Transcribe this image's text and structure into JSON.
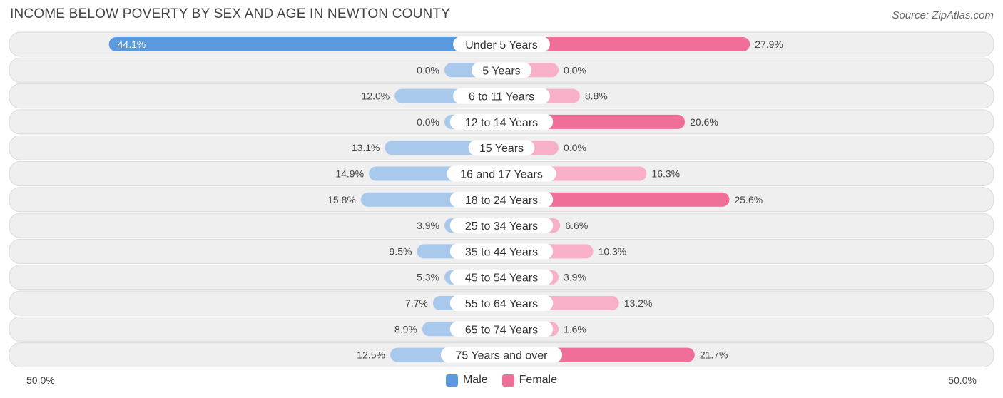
{
  "header": {
    "title": "Income Below Poverty by Sex and Age in Newton County",
    "source": "Source: ZipAtlas.com"
  },
  "colors": {
    "male_strong": "#5b9bdd",
    "male_light": "#a8c8ec",
    "female_strong": "#f06f98",
    "female_light": "#f7b0c7",
    "row_bg": "#efefef",
    "row_border": "#dadada"
  },
  "chart_data": {
    "type": "bar",
    "orientation": "diverging-horizontal",
    "title": "Income Below Poverty by Sex and Age in Newton County",
    "categories": [
      "Under 5 Years",
      "5 Years",
      "6 to 11 Years",
      "12 to 14 Years",
      "15 Years",
      "16 and 17 Years",
      "18 to 24 Years",
      "25 to 34 Years",
      "35 to 44 Years",
      "45 to 54 Years",
      "55 to 64 Years",
      "65 to 74 Years",
      "75 Years and over"
    ],
    "series": [
      {
        "name": "Male",
        "values": [
          44.1,
          0.0,
          12.0,
          0.0,
          13.1,
          14.9,
          15.8,
          3.9,
          9.5,
          5.3,
          7.7,
          8.9,
          12.5
        ],
        "labels": [
          "44.1%",
          "0.0%",
          "12.0%",
          "0.0%",
          "13.1%",
          "14.9%",
          "15.8%",
          "3.9%",
          "9.5%",
          "5.3%",
          "7.7%",
          "8.9%",
          "12.5%"
        ]
      },
      {
        "name": "Female",
        "values": [
          27.9,
          0.0,
          8.8,
          20.6,
          0.0,
          16.3,
          25.6,
          6.6,
          10.3,
          3.9,
          13.2,
          1.6,
          21.7
        ],
        "labels": [
          "27.9%",
          "0.0%",
          "8.8%",
          "20.6%",
          "0.0%",
          "16.3%",
          "25.6%",
          "6.6%",
          "10.3%",
          "3.9%",
          "13.2%",
          "1.6%",
          "21.7%"
        ]
      }
    ],
    "xlim": [
      -50,
      50
    ],
    "axis_left_label": "50.0%",
    "axis_right_label": "50.0%",
    "legend": [
      "Male",
      "Female"
    ],
    "legend_position": "bottom-center"
  }
}
